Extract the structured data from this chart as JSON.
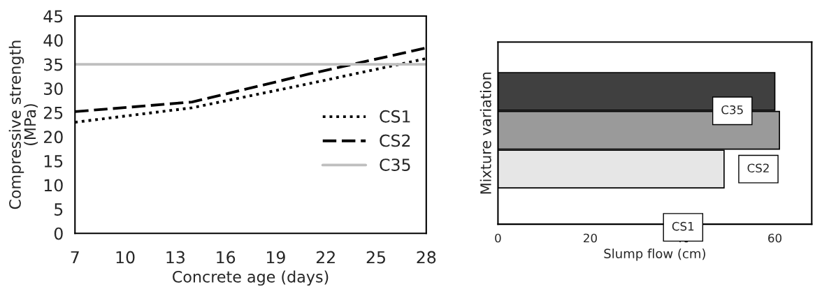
{
  "chart_data": [
    {
      "type": "line",
      "xlabel": "Concrete age (days)",
      "ylabel": "Compressive strength\n(MPa)",
      "x": [
        7,
        14,
        21,
        28
      ],
      "xlim": [
        7,
        28
      ],
      "xticks": [
        7,
        10,
        13,
        16,
        19,
        22,
        25,
        28
      ],
      "ylim": [
        0,
        45
      ],
      "yticks": [
        0,
        5,
        10,
        15,
        20,
        25,
        30,
        35,
        40,
        45
      ],
      "grid": false,
      "legend": "right",
      "marker": "none",
      "series": [
        {
          "name": "CS1",
          "color": "#000000",
          "line_style": "dotted",
          "values": [
            23,
            26,
            31,
            36.2
          ]
        },
        {
          "name": "CS2",
          "color": "#000000",
          "line_style": "dashed",
          "values": [
            25.2,
            27.2,
            33,
            38.4
          ]
        },
        {
          "name": "C35",
          "color": "#bfbfbf",
          "line_style": "solid",
          "values": [
            35,
            35,
            35,
            35
          ]
        }
      ]
    },
    {
      "type": "bar",
      "orientation": "horizontal",
      "xlabel": "Slump flow (cm)",
      "ylabel": "Mixture variation",
      "categories": [
        null,
        null,
        null
      ],
      "annotations": [
        "C35",
        "CS2",
        "CS1"
      ],
      "values": [
        60,
        61,
        49
      ],
      "colors": [
        "#404040",
        "#9a9a9a",
        "#e6e6e6"
      ],
      "xlim": [
        0,
        68
      ],
      "xticks": [
        0,
        20,
        40,
        60
      ],
      "grid": false,
      "tick_labels": "x"
    }
  ]
}
